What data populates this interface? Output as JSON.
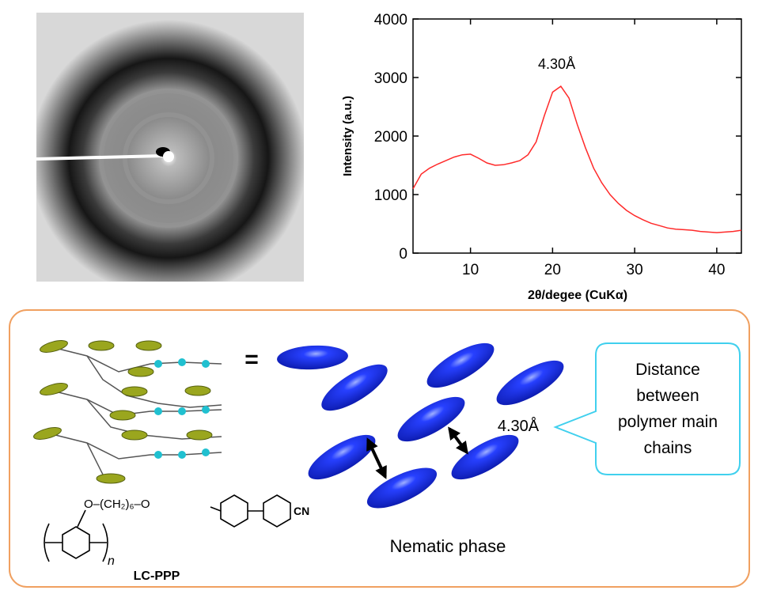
{
  "chart_data": {
    "type": "line",
    "xlabel": "2θ/degee (CuKα)",
    "ylabel": "Intensity (a.u.)",
    "x": [
      3,
      4,
      5,
      6,
      7,
      8,
      9,
      10,
      11,
      12,
      13,
      14,
      15,
      16,
      17,
      18,
      19,
      20,
      21,
      22,
      23,
      24,
      25,
      26,
      27,
      28,
      29,
      30,
      31,
      32,
      33,
      34,
      35,
      36,
      37,
      38,
      39,
      40,
      41,
      42,
      43
    ],
    "values": [
      1100,
      1350,
      1450,
      1520,
      1580,
      1640,
      1680,
      1690,
      1620,
      1540,
      1500,
      1510,
      1540,
      1580,
      1680,
      1900,
      2350,
      2750,
      2850,
      2650,
      2200,
      1800,
      1450,
      1200,
      1000,
      850,
      730,
      640,
      570,
      510,
      470,
      430,
      410,
      400,
      390,
      370,
      360,
      350,
      360,
      370,
      390
    ],
    "color": "#ff2a2a",
    "xlim": [
      3,
      43
    ],
    "ylim": [
      0,
      4000
    ],
    "xticks": [
      10,
      20,
      30,
      40
    ],
    "yticks": [
      0,
      1000,
      2000,
      3000,
      4000
    ],
    "annotations": [
      {
        "text": "4.30Å",
        "x": 20.5,
        "y": 3150
      }
    ]
  },
  "diagram": {
    "equals": "=",
    "distance_label": "4.30Å",
    "callout": [
      "Distance",
      "between",
      "polymer main",
      "chains"
    ],
    "phase_label": "Nematic phase",
    "compound": "LC-PPP",
    "spacer": "O–(CH₂)₆–O",
    "end_group": "CN",
    "repeat": "n"
  }
}
